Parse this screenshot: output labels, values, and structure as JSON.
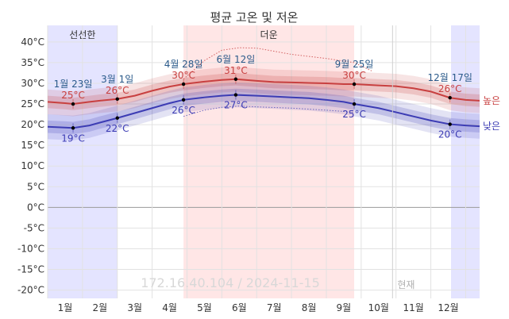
{
  "chart_data": {
    "type": "line",
    "title": "평균 고온 및 저온",
    "y_unit": "°C",
    "ylim": [
      -22,
      44
    ],
    "y_ticks": [
      -20,
      -15,
      -10,
      -5,
      0,
      5,
      10,
      15,
      20,
      25,
      30,
      35,
      40
    ],
    "y_tick_labels": [
      "-20°C",
      "-15°C",
      "-10°C",
      "-5°C",
      "0°C",
      "5°C",
      "10°C",
      "15°C",
      "20°C",
      "25°C",
      "30°C",
      "35°C",
      "40°C"
    ],
    "x_range_months": [
      0,
      12.4
    ],
    "months": [
      "1월",
      "2월",
      "3월",
      "4월",
      "5월",
      "6월",
      "7월",
      "8월",
      "9월",
      "10월",
      "11월",
      "12월"
    ],
    "grid": true,
    "bands": [
      {
        "name": "선선한",
        "start": 0,
        "end": 2.0,
        "color": "#e4e4ff"
      },
      {
        "name": "더운",
        "start": 3.9,
        "end": 8.8,
        "color": "#ffe6e6"
      },
      {
        "name": "",
        "start": 11.58,
        "end": 12.4,
        "color": "#e4e4ff"
      }
    ],
    "series": [
      {
        "name": "높은",
        "color": "#c84040",
        "x": [
          0,
          0.5,
          0.73,
          1.2,
          1.5,
          2.0,
          2.5,
          3.0,
          3.5,
          3.9,
          4.5,
          5.0,
          5.4,
          6.0,
          6.5,
          7.0,
          7.5,
          8.0,
          8.5,
          8.8,
          9.5,
          10.0,
          10.5,
          11.0,
          11.55,
          12.0,
          12.4
        ],
        "values": [
          25.5,
          25.2,
          25.0,
          25.5,
          25.8,
          26.2,
          27.0,
          28.2,
          29.2,
          29.8,
          30.4,
          30.8,
          31.0,
          30.6,
          30.3,
          30.2,
          30.1,
          30.0,
          29.8,
          29.8,
          29.5,
          29.3,
          28.8,
          28.0,
          26.5,
          26.0,
          25.8
        ],
        "band_inner": 1.5,
        "band_outer": 3.0
      },
      {
        "name": "낮은",
        "color": "#3c3cb4",
        "x": [
          0,
          0.5,
          0.73,
          1.2,
          1.5,
          2.0,
          2.5,
          3.0,
          3.5,
          3.9,
          4.5,
          5.0,
          5.4,
          6.0,
          6.5,
          7.0,
          7.5,
          8.0,
          8.5,
          8.8,
          9.5,
          10.0,
          10.5,
          11.0,
          11.55,
          12.0,
          12.4
        ],
        "values": [
          19.5,
          19.3,
          19.2,
          19.8,
          20.5,
          21.6,
          22.8,
          24.0,
          25.2,
          26.0,
          26.6,
          27.0,
          27.2,
          27.0,
          26.8,
          26.6,
          26.4,
          26.0,
          25.5,
          25.0,
          24.0,
          23.0,
          22.0,
          21.0,
          20.1,
          19.8,
          19.6
        ],
        "band_inner": 1.5,
        "band_outer": 3.0
      }
    ],
    "record_high_x": [
      3.9,
      4.5,
      5.0,
      5.5,
      6.0,
      7.0,
      8.0,
      8.8,
      9.3
    ],
    "record_high_values": [
      31.0,
      35.5,
      38.0,
      38.6,
      38.5,
      37.0,
      36.0,
      35.0,
      33.0
    ],
    "record_low_x": [
      3.9,
      4.5,
      5.0,
      5.5,
      6.0,
      7.0,
      8.0,
      8.8
    ],
    "record_low_values": [
      22.0,
      23.5,
      24.2,
      24.5,
      24.3,
      24.0,
      23.5,
      23.0
    ],
    "annotations": [
      {
        "x": 0.73,
        "y": 25.0,
        "color": "#c84040",
        "date": "1월 23일",
        "value": "25°C",
        "pos": "above"
      },
      {
        "x": 0.73,
        "y": 19.2,
        "color": "#3c3cb4",
        "date": "",
        "value": "19°C",
        "pos": "below"
      },
      {
        "x": 2.0,
        "y": 26.2,
        "color": "#c84040",
        "date": "3월 1일",
        "value": "26°C",
        "pos": "above"
      },
      {
        "x": 2.0,
        "y": 21.6,
        "color": "#3c3cb4",
        "date": "",
        "value": "22°C",
        "pos": "below"
      },
      {
        "x": 3.9,
        "y": 29.8,
        "color": "#c84040",
        "date": "4월 28일",
        "value": "30°C",
        "pos": "above"
      },
      {
        "x": 3.9,
        "y": 26.0,
        "color": "#3c3cb4",
        "date": "",
        "value": "26°C",
        "pos": "below"
      },
      {
        "x": 5.4,
        "y": 31.0,
        "color": "#c84040",
        "date": "6월 12일",
        "value": "31°C",
        "pos": "above"
      },
      {
        "x": 5.4,
        "y": 27.2,
        "color": "#3c3cb4",
        "date": "",
        "value": "27°C",
        "pos": "below"
      },
      {
        "x": 8.8,
        "y": 29.8,
        "color": "#c84040",
        "date": "9월 25일",
        "value": "30°C",
        "pos": "above"
      },
      {
        "x": 8.8,
        "y": 25.0,
        "color": "#3c3cb4",
        "date": "",
        "value": "25°C",
        "pos": "below"
      },
      {
        "x": 11.55,
        "y": 26.5,
        "color": "#c84040",
        "date": "12월 17일",
        "value": "26°C",
        "pos": "above"
      },
      {
        "x": 11.55,
        "y": 20.1,
        "color": "#3c3cb4",
        "date": "",
        "value": "20°C",
        "pos": "below"
      }
    ],
    "now_marker": {
      "x": 9.9,
      "label": "현재"
    },
    "watermark": "172.16.40.104 / 2024-11-15"
  }
}
